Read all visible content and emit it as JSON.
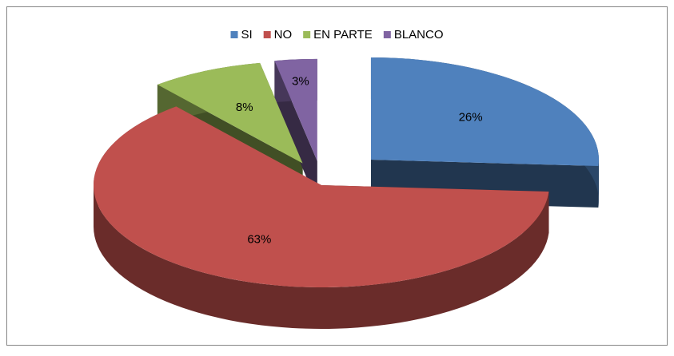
{
  "chart_data": {
    "type": "pie3d",
    "categories": [
      "SI",
      "NO",
      "EN PARTE",
      "BLANCO"
    ],
    "values": [
      26,
      63,
      8,
      3
    ],
    "value_labels": [
      "26%",
      "63%",
      "8%",
      "3%"
    ],
    "colors": [
      "#4f81bd",
      "#c0504d",
      "#9bbb59",
      "#8064a2"
    ],
    "legend": "top"
  }
}
